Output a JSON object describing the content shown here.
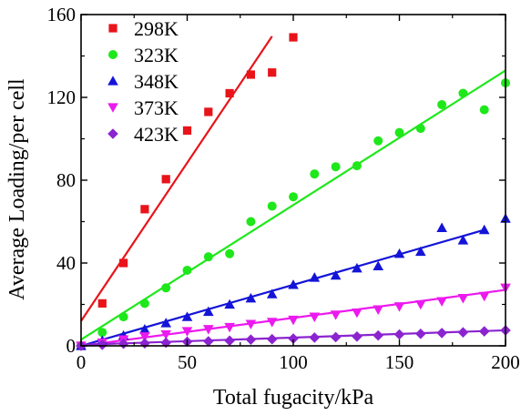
{
  "chart_data": {
    "type": "scatter",
    "xlabel": "Total fugacity/kPa",
    "ylabel": "Average Loading/per cell",
    "xlim": [
      0,
      200
    ],
    "ylim": [
      0,
      160
    ],
    "xticks": [
      0,
      50,
      100,
      150,
      200
    ],
    "yticks": [
      0,
      40,
      80,
      120,
      160
    ],
    "legend_position": "top-left",
    "series": [
      {
        "name": "298K",
        "color": "#e8141a",
        "marker": "square",
        "x": [
          0,
          10,
          20,
          30,
          40,
          50,
          60,
          70,
          80,
          90,
          100
        ],
        "y": [
          0,
          20.5,
          40,
          66,
          80.5,
          104,
          113,
          122,
          131,
          132,
          149
        ],
        "fit": {
          "x": [
            0,
            90
          ],
          "y": [
            12,
            149.5
          ]
        }
      },
      {
        "name": "323K",
        "color": "#1ee81a",
        "marker": "circle",
        "x": [
          0,
          10,
          20,
          30,
          40,
          50,
          60,
          70,
          80,
          90,
          100,
          110,
          120,
          130,
          140,
          150,
          160,
          170,
          180,
          190,
          200
        ],
        "y": [
          0,
          6.5,
          14,
          20.5,
          28,
          36.5,
          43,
          44.5,
          60,
          67.5,
          72,
          83,
          86.5,
          87,
          99,
          103,
          105,
          116.5,
          122,
          114,
          127
        ],
        "fit": {
          "x": [
            0,
            200
          ],
          "y": [
            3,
            133
          ]
        }
      },
      {
        "name": "348K",
        "color": "#1414d8",
        "marker": "triangle-up",
        "x": [
          0,
          10,
          20,
          30,
          40,
          50,
          60,
          70,
          80,
          90,
          100,
          110,
          120,
          130,
          140,
          150,
          160,
          170,
          180,
          190,
          200
        ],
        "y": [
          0,
          2.5,
          5,
          8,
          11,
          14,
          16.5,
          20,
          23,
          25,
          29.5,
          33,
          34,
          37.5,
          38.5,
          44.5,
          45.5,
          57,
          51,
          56,
          61.5
        ],
        "fit": {
          "x": [
            0,
            190
          ],
          "y": [
            0,
            56
          ]
        }
      },
      {
        "name": "373K",
        "color": "#ec1aee",
        "marker": "triangle-down",
        "x": [
          0,
          10,
          20,
          30,
          40,
          50,
          60,
          70,
          80,
          90,
          100,
          110,
          120,
          130,
          140,
          150,
          160,
          170,
          180,
          190,
          200
        ],
        "y": [
          0,
          1.5,
          3,
          4.5,
          5.5,
          7,
          8,
          9,
          10.5,
          11.5,
          12.5,
          14,
          15,
          16,
          17.5,
          19,
          20,
          21.5,
          23,
          24,
          28
        ],
        "fit": {
          "x": [
            0,
            200
          ],
          "y": [
            0,
            27
          ]
        }
      },
      {
        "name": "423K",
        "color": "#8b24d0",
        "marker": "diamond",
        "x": [
          0,
          10,
          20,
          30,
          40,
          50,
          60,
          70,
          80,
          90,
          100,
          110,
          120,
          130,
          140,
          150,
          160,
          170,
          180,
          190,
          200
        ],
        "y": [
          0,
          0.5,
          1,
          1.2,
          1.5,
          2,
          2.2,
          2.5,
          3,
          3.2,
          3.5,
          4,
          4.2,
          4.5,
          5,
          5.5,
          5.8,
          6.2,
          6.5,
          7,
          7.5
        ],
        "fit": {
          "x": [
            0,
            200
          ],
          "y": [
            0.5,
            7.5
          ]
        }
      }
    ]
  }
}
